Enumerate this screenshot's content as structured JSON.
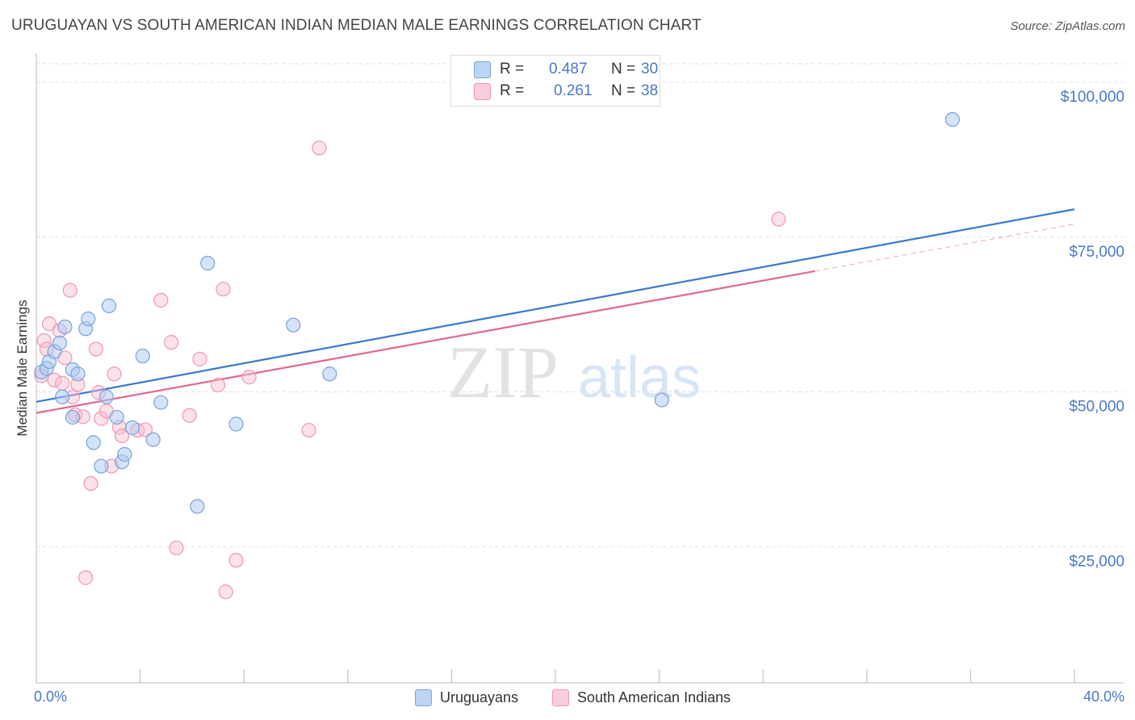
{
  "title": "URUGUAYAN VS SOUTH AMERICAN INDIAN MEDIAN MALE EARNINGS CORRELATION CHART",
  "source": "Source: ZipAtlas.com",
  "watermark": {
    "zip": "ZIP",
    "atlas": "atlas"
  },
  "legend": {
    "rows": [
      {
        "r_label": "R =",
        "r_value": "0.487",
        "n_label": "N =",
        "n_value": "30"
      },
      {
        "r_label": "R =",
        "r_value": "0.261",
        "n_label": "N =",
        "n_value": "38"
      }
    ]
  },
  "bottom_legend": {
    "series1": "Uruguayans",
    "series2": "South American Indians"
  },
  "colors": {
    "blue_fill": "#a9c7f0",
    "blue_stroke": "#7aa3d8",
    "blue_line": "#3a78d0",
    "pink_fill": "#f6bcd0",
    "pink_stroke": "#ec98b4",
    "pink_line": "#e06896",
    "tick_text": "#4a78c8",
    "grid": "#dddddd"
  },
  "chart_data": {
    "type": "scatter",
    "title": "URUGUAYAN VS SOUTH AMERICAN INDIAN MEDIAN MALE EARNINGS CORRELATION CHART",
    "xlabel": "",
    "ylabel": "Median Male Earnings",
    "xlim": [
      0,
      40
    ],
    "ylim": [
      3000,
      103000
    ],
    "x_tick_labels": [
      "0.0%",
      "40.0%"
    ],
    "y_ticks": [
      25000,
      50000,
      75000,
      100000
    ],
    "y_tick_labels": [
      "$25,000",
      "$50,000",
      "$75,000",
      "$100,000"
    ],
    "grid": "horizontal dashed",
    "legend_position": "top-center",
    "series": [
      {
        "name": "Uruguayans",
        "color": "#a9c7f0",
        "points": [
          [
            0.2,
            53200
          ],
          [
            0.4,
            53800
          ],
          [
            0.5,
            54900
          ],
          [
            0.7,
            56500
          ],
          [
            0.9,
            57900
          ],
          [
            1.0,
            49200
          ],
          [
            1.1,
            60500
          ],
          [
            1.4,
            53600
          ],
          [
            1.4,
            45900
          ],
          [
            1.6,
            52900
          ],
          [
            1.9,
            60200
          ],
          [
            2.0,
            61800
          ],
          [
            2.2,
            41800
          ],
          [
            2.5,
            38000
          ],
          [
            2.7,
            49200
          ],
          [
            2.8,
            63900
          ],
          [
            3.1,
            45900
          ],
          [
            3.3,
            38700
          ],
          [
            3.4,
            39900
          ],
          [
            3.7,
            44200
          ],
          [
            4.1,
            55800
          ],
          [
            4.5,
            42300
          ],
          [
            4.8,
            48300
          ],
          [
            6.2,
            31500
          ],
          [
            6.6,
            70800
          ],
          [
            7.7,
            44800
          ],
          [
            9.9,
            60800
          ],
          [
            11.3,
            52900
          ],
          [
            24.1,
            48700
          ],
          [
            35.3,
            94000
          ]
        ],
        "trend": {
          "x": [
            0,
            40
          ],
          "y": [
            48400,
            79500
          ]
        }
      },
      {
        "name": "South American Indians",
        "color": "#f6bcd0",
        "points": [
          [
            0.2,
            52600
          ],
          [
            0.3,
            58300
          ],
          [
            0.4,
            56900
          ],
          [
            0.5,
            61000
          ],
          [
            0.7,
            51900
          ],
          [
            0.9,
            59900
          ],
          [
            1.0,
            51400
          ],
          [
            1.1,
            55500
          ],
          [
            1.3,
            66400
          ],
          [
            1.4,
            49200
          ],
          [
            1.5,
            46300
          ],
          [
            1.6,
            51200
          ],
          [
            1.8,
            46000
          ],
          [
            1.9,
            20000
          ],
          [
            2.1,
            35200
          ],
          [
            2.3,
            56900
          ],
          [
            2.4,
            49900
          ],
          [
            2.5,
            45700
          ],
          [
            2.7,
            46900
          ],
          [
            2.9,
            38000
          ],
          [
            3.0,
            52900
          ],
          [
            3.2,
            44300
          ],
          [
            3.3,
            42900
          ],
          [
            3.9,
            43800
          ],
          [
            4.8,
            64800
          ],
          [
            5.2,
            58000
          ],
          [
            5.4,
            24800
          ],
          [
            5.9,
            46200
          ],
          [
            6.3,
            55300
          ],
          [
            7.0,
            51100
          ],
          [
            7.2,
            66600
          ],
          [
            7.3,
            17700
          ],
          [
            7.7,
            22800
          ],
          [
            8.2,
            52400
          ],
          [
            10.5,
            43800
          ],
          [
            10.9,
            89400
          ],
          [
            28.6,
            77900
          ],
          [
            4.2,
            43900
          ]
        ],
        "trend": {
          "x": [
            0,
            30
          ],
          "y": [
            46600,
            69500
          ]
        },
        "trend_extension": {
          "x": [
            30,
            40
          ],
          "y": [
            69500,
            77100
          ]
        }
      }
    ]
  }
}
